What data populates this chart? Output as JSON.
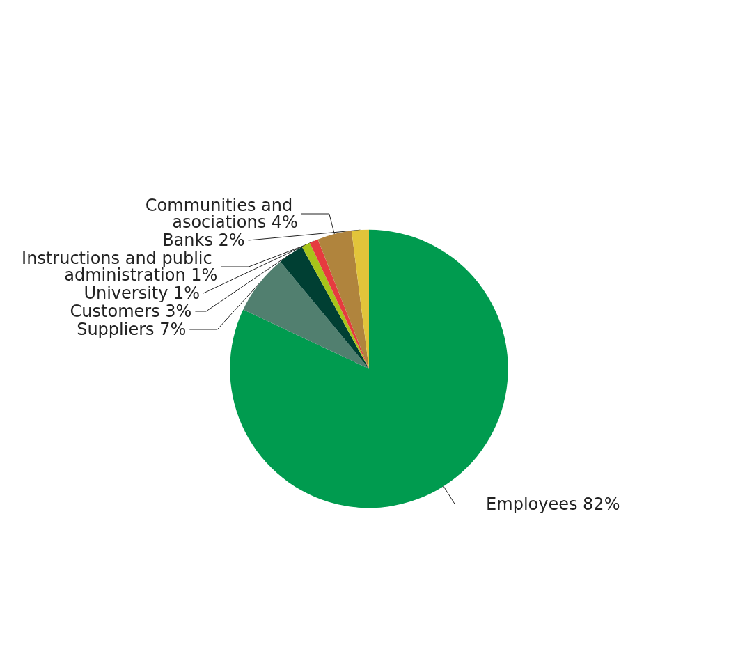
{
  "chart_data": {
    "type": "pie",
    "categories": [
      "Employees",
      "Suppliers",
      "Customers",
      "Instructions and public administration",
      "University",
      "Communities and asociations",
      "Banks"
    ],
    "values": [
      82,
      7,
      3,
      1,
      1,
      4,
      2
    ],
    "value_labels": [
      "82%",
      "7%",
      "3%",
      "1%",
      "1%",
      "4%",
      "2%"
    ],
    "colors": [
      "#009b4f",
      "#517f6f",
      "#003f33",
      "#a8c41a",
      "#e63a3f",
      "#b0843d",
      "#e2c43a"
    ],
    "legend": false
  }
}
